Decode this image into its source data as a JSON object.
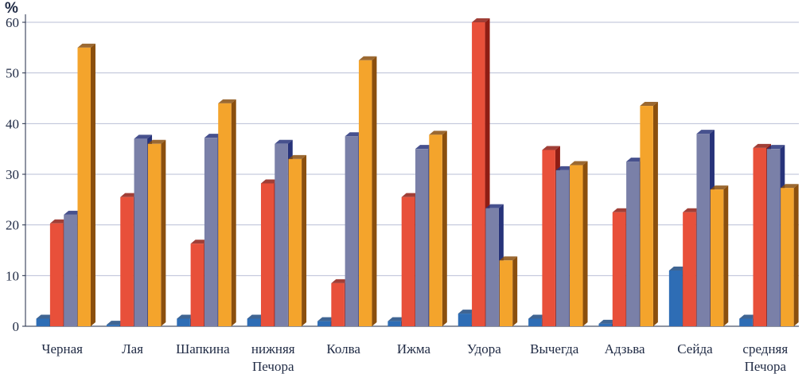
{
  "chart_data": {
    "type": "bar",
    "ylabel": "%",
    "ylim": [
      0,
      60
    ],
    "yticks": [
      0,
      10,
      20,
      30,
      40,
      50,
      60
    ],
    "grid": true,
    "legend": "none",
    "categories": [
      [
        "Черная"
      ],
      [
        "Лая"
      ],
      [
        "Шапкина"
      ],
      [
        "нижняя",
        "Печора"
      ],
      [
        "Колва"
      ],
      [
        "Ижма"
      ],
      [
        "Удора"
      ],
      [
        "Вычегда"
      ],
      [
        "Адзьва"
      ],
      [
        "Сейда"
      ],
      [
        "средняя",
        "Печора"
      ]
    ],
    "series": [
      {
        "color": "#2e6db5",
        "side": "#1d4a80",
        "values": [
          1.5,
          0.3,
          1.5,
          1.5,
          1,
          1,
          2.5,
          1.5,
          0.5,
          11,
          1.5
        ]
      },
      {
        "color": "#e8503a",
        "side": "#8f1d14",
        "values": [
          20.3,
          25.5,
          16.3,
          28.2,
          8.5,
          25.5,
          60,
          34.8,
          22.5,
          22.5,
          35.2
        ]
      },
      {
        "color": "#7a80a8",
        "side": "#27337a",
        "values": [
          22,
          37,
          37.2,
          36,
          37.5,
          35,
          23.3,
          30.8,
          32.5,
          38,
          35
        ]
      },
      {
        "color": "#f4a42c",
        "side": "#8a4f0e",
        "values": [
          55,
          36,
          44,
          33,
          52.5,
          37.8,
          13,
          31.8,
          43.5,
          27,
          27.3
        ]
      }
    ]
  }
}
